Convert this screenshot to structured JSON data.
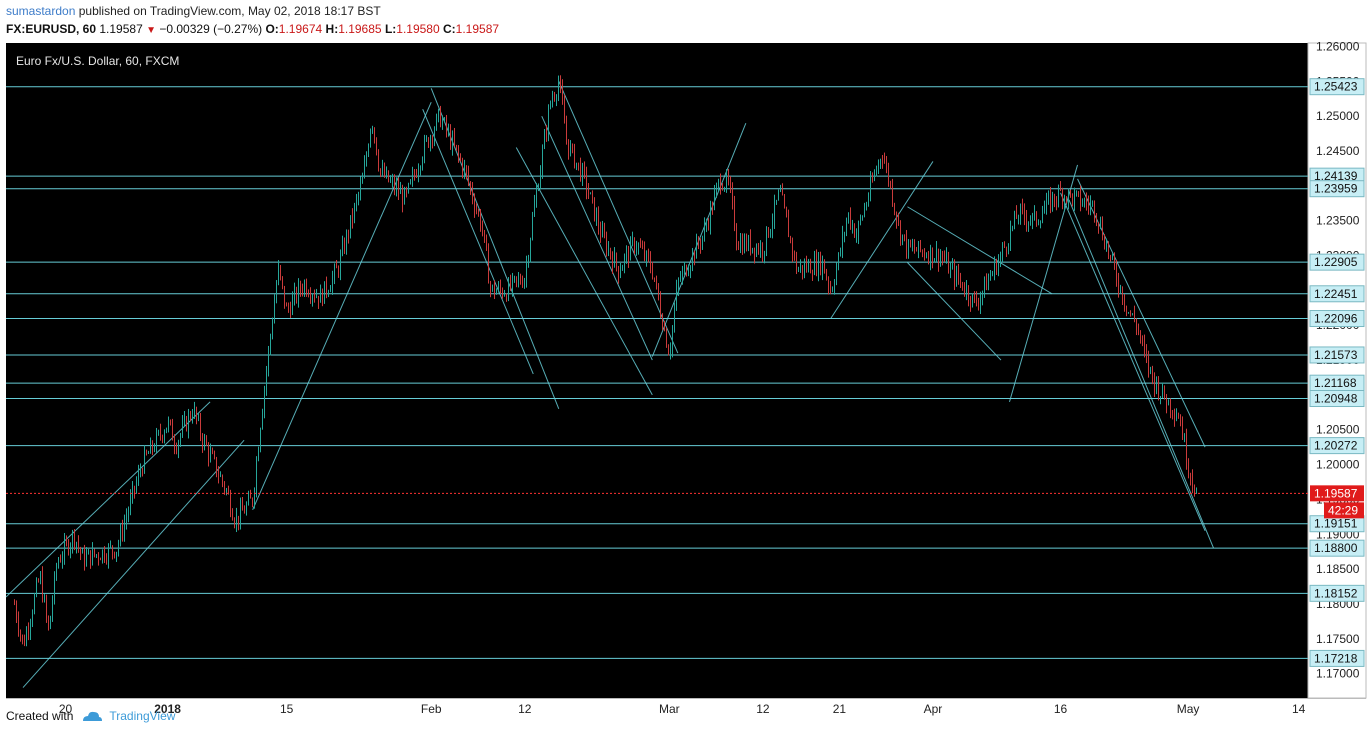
{
  "header": {
    "user": "sumastardon",
    "published_text": "published on TradingView.com, May 02, 2018 18:17 BST",
    "symbol": "FX:EURUSD, 60",
    "last": "1.19587",
    "change": "−0.00329 (−0.27%)",
    "o_label": "O:",
    "o": "1.19674",
    "h_label": "H:",
    "h": "1.19685",
    "l_label": "L:",
    "l": "1.19580",
    "c_label": "C:",
    "c": "1.19587"
  },
  "footer": {
    "created_with": "Created with",
    "brand": "TradingView"
  },
  "chart_data": {
    "type": "line",
    "title": "Euro Fx/U.S. Dollar, 60, FXCM",
    "ylim": [
      1.1665,
      1.2605
    ],
    "y_ticks": [
      "1.26000",
      "1.25500",
      "1.25000",
      "1.24500",
      "1.24000",
      "1.23500",
      "1.23000",
      "1.22500",
      "1.22000",
      "1.21500",
      "1.21000",
      "1.20500",
      "1.20000",
      "1.19500",
      "1.19000",
      "1.18500",
      "1.18000",
      "1.17500",
      "1.17000"
    ],
    "x_labels": [
      "20",
      "2018",
      "15",
      "Feb",
      "12",
      "Mar",
      "12",
      "21",
      "Apr",
      "16",
      "May",
      "14"
    ],
    "horizontal_levels": [
      "1.25423",
      "1.24139",
      "1.23959",
      "1.22905",
      "1.22451",
      "1.22096",
      "1.21573",
      "1.21168",
      "1.20948",
      "1.20272",
      "1.19151",
      "1.18800",
      "1.18152",
      "1.17218"
    ],
    "current_price": "1.19587",
    "countdown": "42:29",
    "price_path": [
      {
        "x": "Dec 14",
        "y": 1.18
      },
      {
        "x": "Dec 15",
        "y": 1.174
      },
      {
        "x": "Dec 17",
        "y": 1.184
      },
      {
        "x": "Dec 18",
        "y": 1.176
      },
      {
        "x": "Dec 19",
        "y": 1.186
      },
      {
        "x": "Dec 21",
        "y": 1.19
      },
      {
        "x": "Dec 22",
        "y": 1.1865
      },
      {
        "x": "Dec 26",
        "y": 1.188
      },
      {
        "x": "Dec 29",
        "y": 1.2
      },
      {
        "x": "Jan 1",
        "y": 1.206
      },
      {
        "x": "Jan 2",
        "y": 1.203
      },
      {
        "x": "Jan 4",
        "y": 1.208
      },
      {
        "x": "Jan 5",
        "y": 1.204
      },
      {
        "x": "Jan 8",
        "y": 1.196
      },
      {
        "x": "Jan 9",
        "y": 1.192
      },
      {
        "x": "Jan 11",
        "y": 1.195
      },
      {
        "x": "Jan 12",
        "y": 1.207
      },
      {
        "x": "Jan 14",
        "y": 1.228
      },
      {
        "x": "Jan 15",
        "y": 1.222
      },
      {
        "x": "Jan 17",
        "y": 1.226
      },
      {
        "x": "Jan 19",
        "y": 1.224
      },
      {
        "x": "Jan 21",
        "y": 1.228
      },
      {
        "x": "Jan 24",
        "y": 1.241
      },
      {
        "x": "Jan 25",
        "y": 1.25
      },
      {
        "x": "Jan 26",
        "y": 1.242
      },
      {
        "x": "Jan 29",
        "y": 1.238
      },
      {
        "x": "Jan 31",
        "y": 1.245
      },
      {
        "x": "Feb 2",
        "y": 1.25
      },
      {
        "x": "Feb 5",
        "y": 1.242
      },
      {
        "x": "Feb 7",
        "y": 1.234
      },
      {
        "x": "Feb 8",
        "y": 1.225
      },
      {
        "x": "Feb 10",
        "y": 1.225
      },
      {
        "x": "Feb 12",
        "y": 1.227
      },
      {
        "x": "Feb 13",
        "y": 1.236
      },
      {
        "x": "Feb 15",
        "y": 1.252
      },
      {
        "x": "Feb 16",
        "y": 1.255
      },
      {
        "x": "Feb 17",
        "y": 1.246
      },
      {
        "x": "Feb 19",
        "y": 1.241
      },
      {
        "x": "Feb 21",
        "y": 1.233
      },
      {
        "x": "Feb 23",
        "y": 1.228
      },
      {
        "x": "Feb 25",
        "y": 1.232
      },
      {
        "x": "Feb 27",
        "y": 1.228
      },
      {
        "x": "Feb 28",
        "y": 1.222
      },
      {
        "x": "Mar 1",
        "y": 1.216
      },
      {
        "x": "Mar 2",
        "y": 1.226
      },
      {
        "x": "Mar 5",
        "y": 1.233
      },
      {
        "x": "Mar 7",
        "y": 1.241
      },
      {
        "x": "Mar 8",
        "y": 1.24
      },
      {
        "x": "Mar 9",
        "y": 1.232
      },
      {
        "x": "Mar 12",
        "y": 1.231
      },
      {
        "x": "Mar 14",
        "y": 1.239
      },
      {
        "x": "Mar 16",
        "y": 1.228
      },
      {
        "x": "Mar 19",
        "y": 1.229
      },
      {
        "x": "Mar 20",
        "y": 1.225
      },
      {
        "x": "Mar 21",
        "y": 1.23
      },
      {
        "x": "Mar 22",
        "y": 1.236
      },
      {
        "x": "Mar 23",
        "y": 1.233
      },
      {
        "x": "Mar 26",
        "y": 1.245
      },
      {
        "x": "Mar 27",
        "y": 1.24
      },
      {
        "x": "Mar 28",
        "y": 1.234
      },
      {
        "x": "Mar 29",
        "y": 1.231
      },
      {
        "x": "Apr 2",
        "y": 1.23
      },
      {
        "x": "Apr 3",
        "y": 1.228
      },
      {
        "x": "Apr 5",
        "y": 1.225
      },
      {
        "x": "Apr 6",
        "y": 1.223
      },
      {
        "x": "Apr 9",
        "y": 1.23
      },
      {
        "x": "Apr 11",
        "y": 1.236
      },
      {
        "x": "Apr 13",
        "y": 1.235
      },
      {
        "x": "Apr 15",
        "y": 1.238
      },
      {
        "x": "Apr 16",
        "y": 1.239
      },
      {
        "x": "Apr 18",
        "y": 1.238
      },
      {
        "x": "Apr 20",
        "y": 1.237
      },
      {
        "x": "Apr 22",
        "y": 1.229
      },
      {
        "x": "Apr 24",
        "y": 1.222
      },
      {
        "x": "Apr 25",
        "y": 1.22
      },
      {
        "x": "Apr 26",
        "y": 1.215
      },
      {
        "x": "Apr 27",
        "y": 1.212
      },
      {
        "x": "Apr 28",
        "y": 1.21
      },
      {
        "x": "Apr 30",
        "y": 1.207
      },
      {
        "x": "May 1",
        "y": 1.2
      },
      {
        "x": "May 2",
        "y": 1.1959
      }
    ],
    "colors": {
      "background": "#000000",
      "up": "#26a69a",
      "down": "#c93b3b",
      "level": "#66ccd6",
      "price_line": "#ff3333",
      "label_bg": "#c7eef5"
    }
  }
}
